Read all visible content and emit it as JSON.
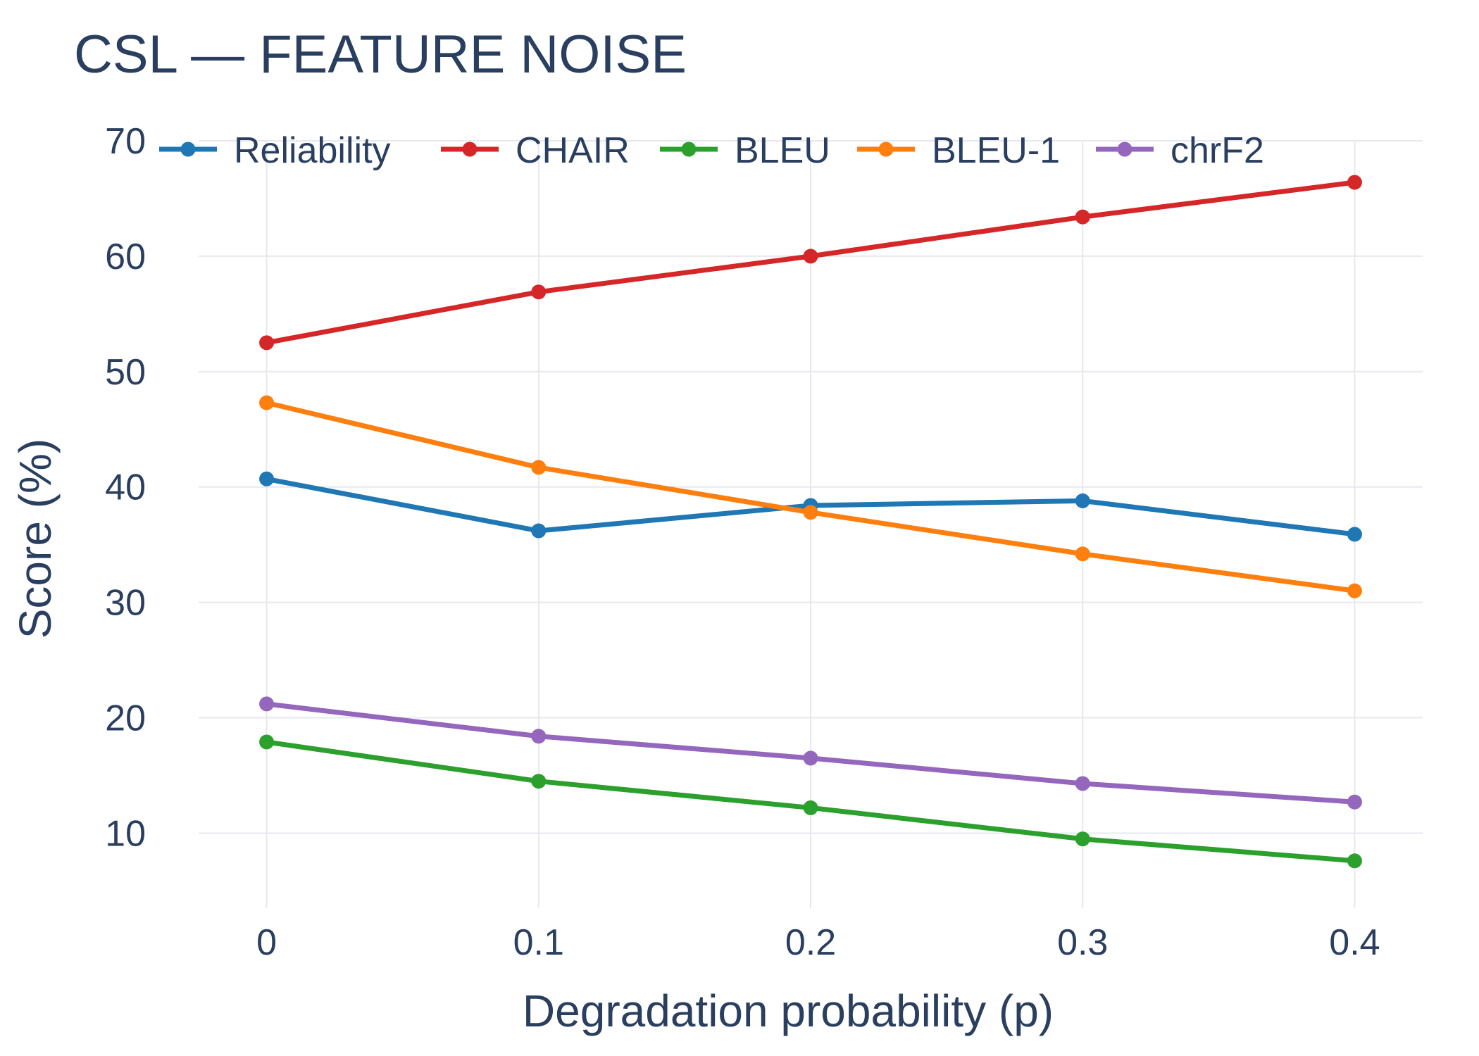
{
  "chart_data": {
    "type": "line",
    "title": "CSL — FEATURE NOISE",
    "xlabel": "Degradation probability (p)",
    "ylabel": "Score (%)",
    "x": [
      0,
      0.1,
      0.2,
      0.3,
      0.4
    ],
    "x_tick_labels": [
      "0",
      "0.1",
      "0.2",
      "0.3",
      "0.4"
    ],
    "xlim": [
      -0.025,
      0.425
    ],
    "ylim": [
      3.5,
      70
    ],
    "y_ticks": [
      10,
      20,
      30,
      40,
      50,
      60,
      70
    ],
    "y_tick_labels": [
      "10",
      "20",
      "30",
      "40",
      "50",
      "60",
      "70"
    ],
    "grid": true,
    "legend_position": "top",
    "series": [
      {
        "name": "Reliability",
        "color": "#1f77b4",
        "values": [
          40.7,
          36.2,
          38.4,
          38.8,
          35.9
        ]
      },
      {
        "name": "CHAIR",
        "color": "#d62728",
        "values": [
          52.5,
          56.9,
          60.0,
          63.4,
          66.4
        ]
      },
      {
        "name": "BLEU",
        "color": "#2ca02c",
        "values": [
          17.9,
          14.5,
          12.2,
          9.5,
          7.6
        ]
      },
      {
        "name": "BLEU-1",
        "color": "#ff7f0e",
        "values": [
          47.3,
          41.7,
          37.8,
          34.2,
          31.0
        ]
      },
      {
        "name": "chrF2",
        "color": "#9467bd",
        "values": [
          21.2,
          18.4,
          16.5,
          14.3,
          12.7
        ]
      }
    ]
  }
}
